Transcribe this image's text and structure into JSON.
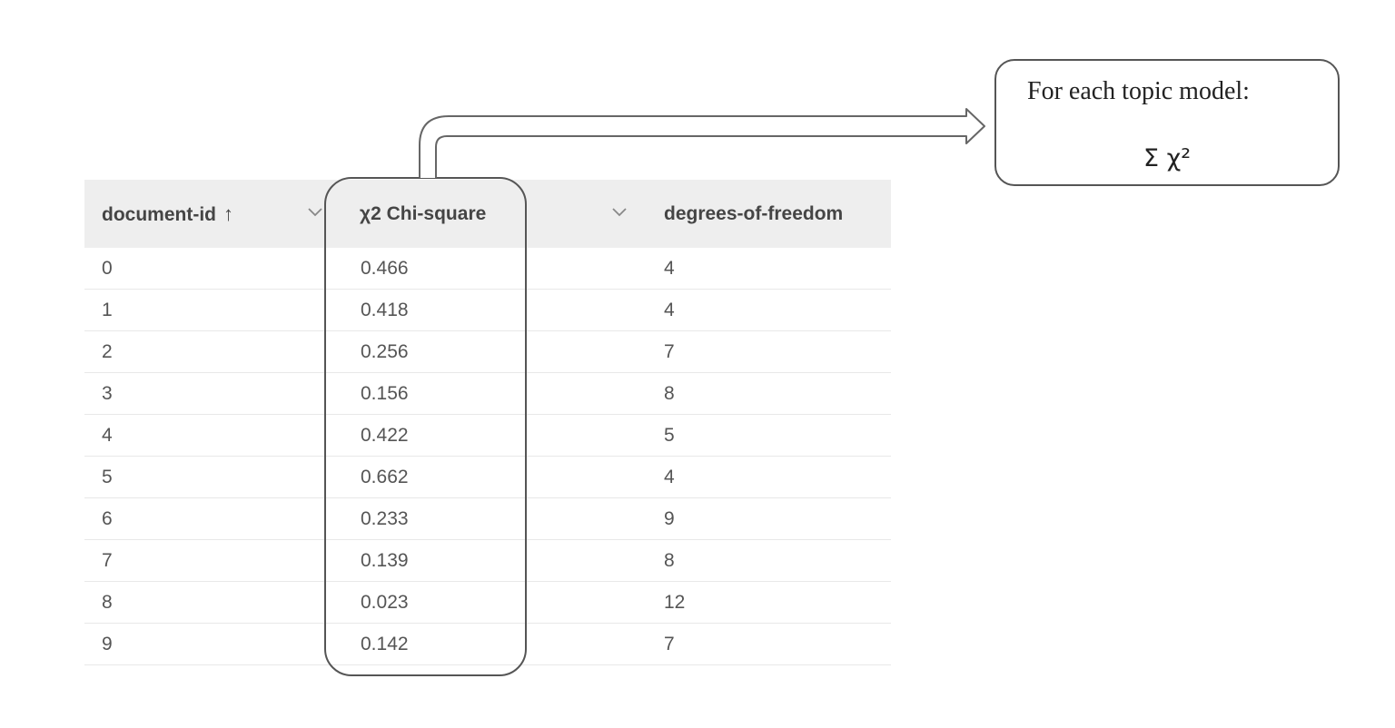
{
  "table": {
    "columns": [
      {
        "label": "document-id",
        "sort_icon": "arrow-up-icon",
        "sort_glyph": "↑"
      },
      {
        "label": "χ2 Chi-square"
      },
      {
        "label": "degrees-of-freedom"
      }
    ],
    "rows": [
      {
        "document_id": "0",
        "chi_square": "0.466",
        "dof": "4"
      },
      {
        "document_id": "1",
        "chi_square": "0.418",
        "dof": "4"
      },
      {
        "document_id": "2",
        "chi_square": "0.256",
        "dof": "7"
      },
      {
        "document_id": "3",
        "chi_square": "0.156",
        "dof": "8"
      },
      {
        "document_id": "4",
        "chi_square": "0.422",
        "dof": "5"
      },
      {
        "document_id": "5",
        "chi_square": "0.662",
        "dof": "4"
      },
      {
        "document_id": "6",
        "chi_square": "0.233",
        "dof": "9"
      },
      {
        "document_id": "7",
        "chi_square": "0.139",
        "dof": "8"
      },
      {
        "document_id": "8",
        "chi_square": "0.023",
        "dof": "12"
      },
      {
        "document_id": "9",
        "chi_square": "0.142",
        "dof": "7"
      }
    ]
  },
  "callout": {
    "title": "For each topic model:",
    "formula": "Σ χ²"
  },
  "colors": {
    "header_bg": "#eeeeee",
    "outline": "#555555",
    "text": "#454545"
  }
}
